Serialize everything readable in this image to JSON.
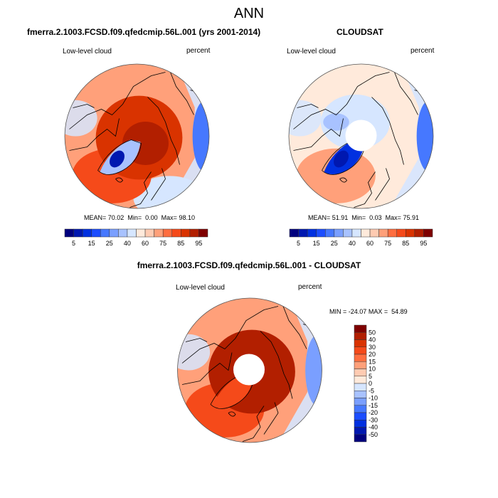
{
  "page": {
    "main_title": "ANN"
  },
  "chart_data": [
    {
      "type": "heatmap",
      "projection": "north-polar-stereographic",
      "title": "fmerra.2.1003.FCSD.f09.qfedcmip.56L.001 (yrs 2001-2014)",
      "left_label": "Low-level cloud",
      "right_label": "percent",
      "stats": {
        "mean_label": "MEAN=",
        "mean": "70.02",
        "min_label": "Min=",
        "min": "0.00",
        "max_label": "Max=",
        "max": "98.10"
      },
      "has_pole_hole": false,
      "colorbar": {
        "orientation": "horizontal",
        "levels": [
          5,
          10,
          15,
          20,
          25,
          30,
          40,
          50,
          60,
          65,
          75,
          80,
          85,
          90,
          95
        ],
        "tick_labels": [
          "5",
          "15",
          "25",
          "40",
          "60",
          "75",
          "85",
          "95"
        ],
        "colors": [
          "#00007e",
          "#0018b0",
          "#0030e0",
          "#1c4dff",
          "#4678ff",
          "#7a9fff",
          "#a8c2ff",
          "#d6e6ff",
          "#ffeadb",
          "#ffcbb2",
          "#ffa07a",
          "#ff6e40",
          "#f54a1a",
          "#d93300",
          "#b21f00",
          "#7f0000"
        ]
      },
      "regions": [
        {
          "name": "background",
          "value": 65
        },
        {
          "name": "arctic-ocean-core",
          "value": 92
        },
        {
          "name": "arctic-ring",
          "value": 85
        },
        {
          "name": "north-atlantic",
          "value": 80
        },
        {
          "name": "greenland-interior",
          "value": 35
        },
        {
          "name": "greenland-center-min",
          "value": 5
        },
        {
          "name": "pacific-edge",
          "value": 40
        },
        {
          "name": "eurasia-south",
          "value": 45
        }
      ]
    },
    {
      "type": "heatmap",
      "projection": "north-polar-stereographic",
      "title": "CLOUDSAT",
      "left_label": "Low-level cloud",
      "right_label": "percent",
      "stats": {
        "mean_label": "MEAN=",
        "mean": "51.91",
        "min_label": "Min=",
        "min": "0.03",
        "max_label": "Max=",
        "max": "75.91"
      },
      "has_pole_hole": true,
      "colorbar": {
        "orientation": "horizontal",
        "levels": [
          5,
          10,
          15,
          20,
          25,
          30,
          40,
          50,
          60,
          65,
          75,
          80,
          85,
          90,
          95
        ],
        "tick_labels": [
          "5",
          "15",
          "25",
          "40",
          "60",
          "75",
          "85",
          "95"
        ],
        "colors": [
          "#00007e",
          "#0018b0",
          "#0030e0",
          "#1c4dff",
          "#4678ff",
          "#7a9fff",
          "#a8c2ff",
          "#d6e6ff",
          "#ffeadb",
          "#ffcbb2",
          "#ffa07a",
          "#ff6e40",
          "#f54a1a",
          "#d93300",
          "#b21f00",
          "#7f0000"
        ]
      },
      "regions": [
        {
          "name": "background",
          "value": 55
        },
        {
          "name": "arctic-ocean",
          "value": 45
        },
        {
          "name": "canada-arctic",
          "value": 35
        },
        {
          "name": "north-atlantic",
          "value": 65
        },
        {
          "name": "greenland",
          "value": 10
        },
        {
          "name": "greenland-center-min",
          "value": 5
        },
        {
          "name": "pacific-edge",
          "value": 40
        }
      ]
    },
    {
      "type": "heatmap",
      "projection": "north-polar-stereographic",
      "title": "fmerra.2.1003.FCSD.f09.qfedcmip.56L.001 - CLOUDSAT",
      "left_label": "Low-level cloud",
      "right_label": "percent",
      "stats": {
        "min_label": "MIN =",
        "min": "-24.07",
        "max_label": "MAX =",
        "max": "54.89"
      },
      "has_pole_hole": true,
      "colorbar": {
        "orientation": "vertical",
        "levels": [
          50,
          40,
          30,
          20,
          15,
          10,
          5,
          0,
          -5,
          -10,
          -15,
          -20,
          -30,
          -40,
          -50
        ],
        "tick_labels": [
          "50",
          "40",
          "30",
          "20",
          "15",
          "10",
          "5",
          "0",
          "-5",
          "-10",
          "-15",
          "-20",
          "-30",
          "-40",
          "-50"
        ],
        "colors": [
          "#7f0000",
          "#b21f00",
          "#d93300",
          "#f54a1a",
          "#ff6e40",
          "#ffa07a",
          "#ffcbb2",
          "#ffeadb",
          "#d6e6ff",
          "#a8c2ff",
          "#7a9fff",
          "#4678ff",
          "#1c4dff",
          "#0030e0",
          "#0018b0",
          "#00007e"
        ]
      },
      "regions": [
        {
          "name": "background",
          "value": 12
        },
        {
          "name": "arctic-ring",
          "value": 45
        },
        {
          "name": "north-atlantic",
          "value": 25
        },
        {
          "name": "greenland",
          "value": 20
        },
        {
          "name": "pacific-edge",
          "value": -5
        }
      ]
    }
  ]
}
